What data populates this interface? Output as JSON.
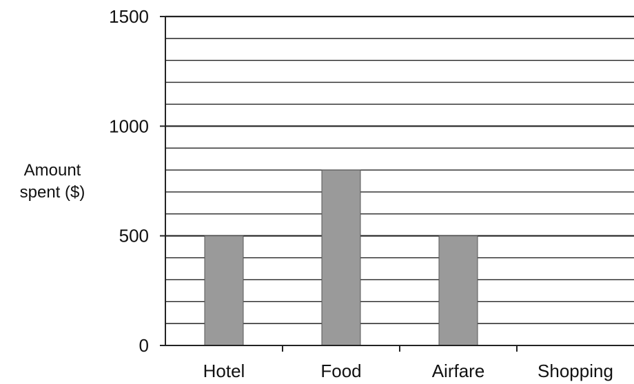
{
  "chart_data": {
    "type": "bar",
    "categories": [
      "Hotel",
      "Food",
      "Airfare",
      "Shopping"
    ],
    "values": [
      500,
      800,
      500,
      0
    ],
    "title": "",
    "xlabel": "",
    "ylabel": [
      "Amount",
      "spent ($)"
    ],
    "ylim": [
      0,
      1500
    ],
    "yticks": [
      "0",
      "500",
      "1000",
      "1500"
    ],
    "minor_grid_step": 100,
    "grid": true,
    "bar_color": "#9a9a9a",
    "grid_color": "#222222"
  }
}
